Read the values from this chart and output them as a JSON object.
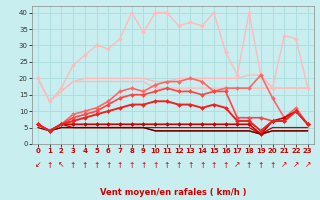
{
  "xlabel": "Vent moyen/en rafales ( km/h )",
  "background_color": "#c8eef0",
  "grid_color": "#aadddd",
  "ylim": [
    0,
    42
  ],
  "xlim": [
    0,
    23
  ],
  "yticks": [
    0,
    5,
    10,
    15,
    20,
    25,
    30,
    35,
    40
  ],
  "xticks": [
    0,
    1,
    2,
    3,
    4,
    5,
    6,
    7,
    8,
    9,
    10,
    11,
    12,
    13,
    14,
    15,
    16,
    17,
    18,
    19,
    20,
    21,
    22,
    23
  ],
  "lines": [
    {
      "y": [
        20,
        13,
        17,
        24,
        27,
        30,
        29,
        32,
        40,
        34,
        40,
        40,
        36,
        37,
        36,
        40,
        28,
        21,
        40,
        21,
        17,
        33,
        32,
        17
      ],
      "color": "#ffbbbb",
      "lw": 1.0,
      "marker": "D",
      "ms": 2.0,
      "zorder": 2
    },
    {
      "y": [
        20,
        13,
        16,
        19,
        20,
        20,
        20,
        20,
        20,
        20,
        19,
        19,
        20,
        20,
        20,
        20,
        20,
        20,
        21,
        21,
        17,
        17,
        17,
        17
      ],
      "color": "#ffbbbb",
      "lw": 1.0,
      "marker": null,
      "ms": 0,
      "zorder": 2
    },
    {
      "y": [
        20,
        13,
        16,
        19,
        19,
        19,
        19,
        19,
        19,
        19,
        17,
        17,
        17,
        17,
        17,
        17,
        17,
        17,
        17,
        17,
        17,
        17,
        17,
        17
      ],
      "color": "#ffbbbb",
      "lw": 1.0,
      "marker": null,
      "ms": 0,
      "zorder": 2
    },
    {
      "y": [
        6,
        4,
        6,
        9,
        10,
        11,
        13,
        16,
        17,
        16,
        18,
        19,
        19,
        20,
        19,
        16,
        17,
        17,
        17,
        21,
        14,
        8,
        11,
        6
      ],
      "color": "#ff6666",
      "lw": 1.2,
      "marker": "D",
      "ms": 2.0,
      "zorder": 4
    },
    {
      "y": [
        6,
        4,
        6,
        8,
        9,
        10,
        12,
        14,
        15,
        15,
        16,
        17,
        16,
        16,
        15,
        16,
        16,
        8,
        8,
        8,
        7,
        7,
        10,
        6
      ],
      "color": "#ff4444",
      "lw": 1.2,
      "marker": "D",
      "ms": 2.0,
      "zorder": 4
    },
    {
      "y": [
        6,
        4,
        6,
        7,
        8,
        9,
        10,
        11,
        12,
        12,
        13,
        13,
        12,
        12,
        11,
        12,
        11,
        7,
        7,
        4,
        7,
        7,
        10,
        6
      ],
      "color": "#ee2222",
      "lw": 1.4,
      "marker": "D",
      "ms": 2.0,
      "zorder": 5
    },
    {
      "y": [
        6,
        4,
        6,
        6,
        6,
        6,
        6,
        6,
        6,
        6,
        6,
        6,
        6,
        6,
        6,
        6,
        6,
        6,
        6,
        3,
        7,
        8,
        10,
        6
      ],
      "color": "#cc0000",
      "lw": 1.2,
      "marker": "D",
      "ms": 2.0,
      "zorder": 4
    },
    {
      "y": [
        6,
        4,
        6,
        5,
        5,
        5,
        5,
        5,
        5,
        5,
        5,
        5,
        5,
        5,
        5,
        5,
        5,
        5,
        5,
        3,
        5,
        5,
        5,
        5
      ],
      "color": "#cc0000",
      "lw": 0.9,
      "marker": null,
      "ms": 0,
      "zorder": 3
    },
    {
      "y": [
        6,
        4,
        5,
        5,
        5,
        5,
        5,
        5,
        5,
        5,
        4,
        4,
        4,
        4,
        4,
        4,
        4,
        4,
        4,
        3,
        4,
        4,
        4,
        4
      ],
      "color": "#990000",
      "lw": 0.9,
      "marker": null,
      "ms": 0,
      "zorder": 3
    },
    {
      "y": [
        5,
        4,
        5,
        5,
        5,
        5,
        5,
        5,
        5,
        5,
        4,
        4,
        4,
        4,
        4,
        4,
        4,
        4,
        4,
        3,
        4,
        4,
        4,
        4
      ],
      "color": "#660000",
      "lw": 0.9,
      "marker": null,
      "ms": 0,
      "zorder": 3
    }
  ],
  "arrow_chars": [
    "↙",
    "↑",
    "↖",
    "↑",
    "↑",
    "↑",
    "↑",
    "↑",
    "↑",
    "↑",
    "↑",
    "↑",
    "↑",
    "↑",
    "↑",
    "↑",
    "↑",
    "↗",
    "↑",
    "↑",
    "↑",
    "↗",
    "↗",
    "↗"
  ]
}
